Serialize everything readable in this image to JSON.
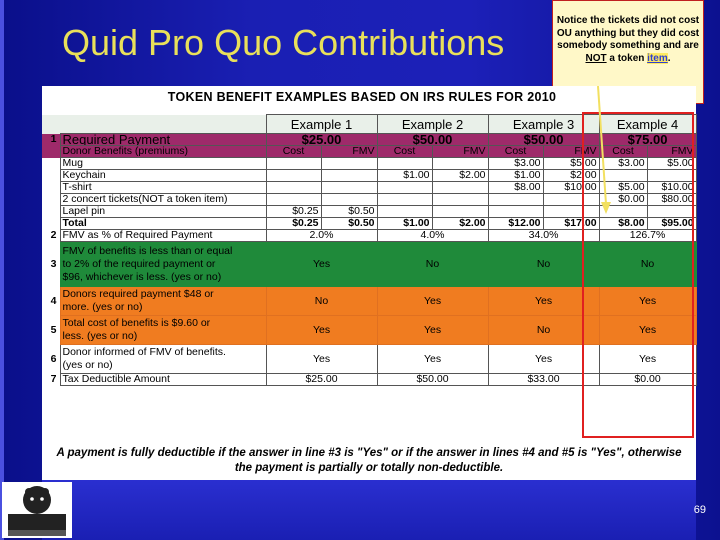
{
  "title": "Quid Pro Quo Contributions",
  "callout": {
    "text_a": "Notice the tickets did not cost OU anything but they did cost somebody something and are ",
    "text_u": "NOT",
    "text_b": " a token ",
    "text_y": "item",
    "text_c": "."
  },
  "sheet_title": "TOKEN BENEFIT EXAMPLES BASED ON IRS RULES FOR 2010",
  "examples": [
    "Example 1",
    "Example 2",
    "Example 3",
    "Example 4"
  ],
  "row1": {
    "num": "1",
    "label": "Required Payment",
    "vals": [
      "$25.00",
      "$50.00",
      "$50.00",
      "$75.00"
    ]
  },
  "benefit_header": {
    "label": "Donor Benefits (premiums)",
    "cost": "Cost",
    "fmv": "FMV"
  },
  "items": [
    {
      "label": "Mug",
      "v": [
        "",
        "",
        "",
        "",
        "$3.00",
        "$5.00",
        "$3.00",
        "$5.00"
      ]
    },
    {
      "label": "Keychain",
      "v": [
        "",
        "",
        "$1.00",
        "$2.00",
        "$1.00",
        "$2.00",
        "",
        ""
      ]
    },
    {
      "label": "T-shirt",
      "v": [
        "",
        "",
        "",
        "",
        "$8.00",
        "$10.00",
        "$5.00",
        "$10.00"
      ]
    },
    {
      "label": "2 concert tickets(NOT a token item)",
      "v": [
        "",
        "",
        "",
        "",
        "",
        "",
        "$0.00",
        "$80.00"
      ]
    },
    {
      "label": "Lapel pin",
      "v": [
        "$0.25",
        "$0.50",
        "",
        "",
        "",
        "",
        "",
        ""
      ]
    },
    {
      "label": "Total",
      "v": [
        "$0.25",
        "$0.50",
        "$1.00",
        "$2.00",
        "$12.00",
        "$17.00",
        "$8.00",
        "$95.00"
      ]
    }
  ],
  "row2": {
    "num": "2",
    "label": "FMV as % of Required Payment",
    "vals": [
      "2.0%",
      "4.0%",
      "34.0%",
      "126.7%"
    ]
  },
  "row3": {
    "num": "3",
    "l1": "FMV of benefits is less than or equal",
    "l2": "to 2% of the required payment or",
    "l3": "$96, whichever is less. (yes or no)",
    "vals": [
      "Yes",
      "No",
      "No",
      "No"
    ]
  },
  "row4": {
    "num": "4",
    "l1": "Donors required payment $48 or",
    "l2": "more. (yes or no)",
    "vals": [
      "No",
      "Yes",
      "Yes",
      "Yes"
    ]
  },
  "row5": {
    "num": "5",
    "l1": "Total cost of benefits is $9.60 or",
    "l2": "less. (yes or no)",
    "vals": [
      "Yes",
      "Yes",
      "No",
      "Yes"
    ]
  },
  "row6": {
    "num": "6",
    "l1": "Donor informed of FMV of benefits.",
    "l2": "(yes or no)",
    "vals": [
      "Yes",
      "Yes",
      "Yes",
      "Yes"
    ]
  },
  "row7": {
    "num": "7",
    "label": "Tax Deductible Amount",
    "vals": [
      "$25.00",
      "$50.00",
      "$33.00",
      "$0.00"
    ]
  },
  "note_l1": "A payment is fully deductible if the answer in line #3 is \"Yes\" or if the answer in lines #4 and #5 is \"Yes\", otherwise",
  "note_l2": "the payment is partially or totally non-deductible.",
  "page_number": "69",
  "colors": {
    "title": "#e9e05a",
    "highlight": "#e02020",
    "green": "#1f8a3a",
    "orange": "#f07c20",
    "purple": "#9e2a6a"
  }
}
